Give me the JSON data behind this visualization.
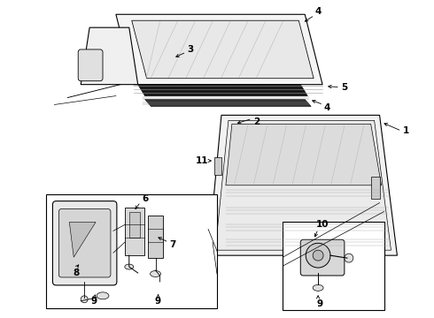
{
  "background_color": "#ffffff",
  "figure_width": 4.9,
  "figure_height": 3.6,
  "dpi": 100,
  "label_fontsize": 7.5,
  "line_color": "#000000",
  "gray_light": "#cccccc",
  "gray_medium": "#aaaaaa",
  "gray_dark": "#444444",
  "black_strip": "#1a1a1a"
}
